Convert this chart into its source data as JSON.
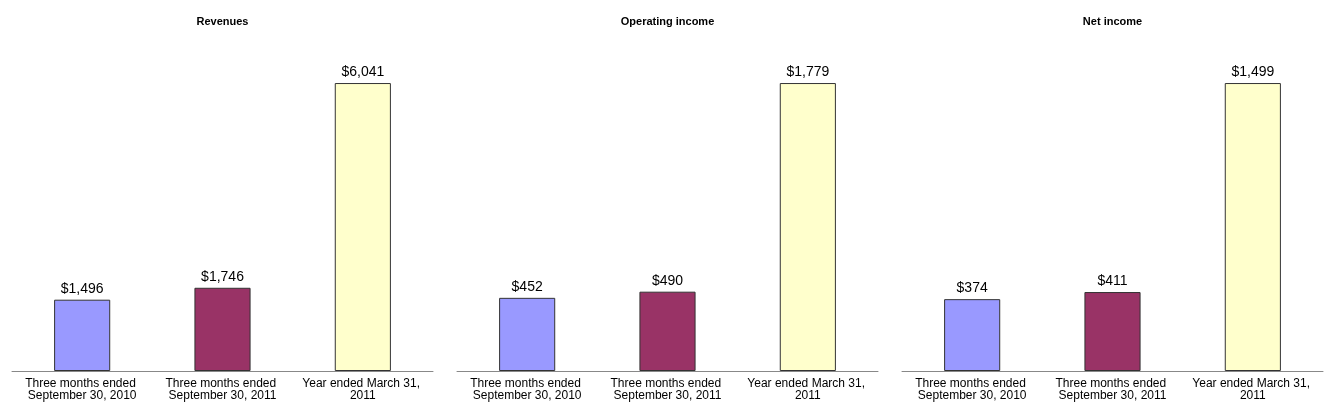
{
  "chart_data": [
    {
      "type": "bar",
      "title": "Revenues",
      "categories": [
        "Three months ended September 30, 2010",
        "Three months ended September 30, 2011",
        "Year ended March 31, 2011"
      ],
      "values": [
        1496,
        1746,
        6041
      ],
      "colors": [
        "#9999ff",
        "#993366",
        "#ffffcc"
      ],
      "value_labels": [
        "$1,496",
        "$1,746",
        "$6,041"
      ]
    },
    {
      "type": "bar",
      "title": "Operating income",
      "categories": [
        "Three months ended September 30, 2010",
        "Three months ended September 30, 2011",
        "Year ended March 31, 2011"
      ],
      "values": [
        452,
        490,
        1779
      ],
      "colors": [
        "#9999ff",
        "#993366",
        "#ffffcc"
      ],
      "value_labels": [
        "$452",
        "$490",
        "$1,779"
      ]
    },
    {
      "type": "bar",
      "title": "Net income",
      "categories": [
        "Three months ended September 30, 2010",
        "Three months ended September 30, 2011",
        "Year ended March 31, 2011"
      ],
      "values": [
        374,
        411,
        1499
      ],
      "colors": [
        "#9999ff",
        "#993366",
        "#ffffcc"
      ],
      "value_labels": [
        "$374",
        "$411",
        "$1,499"
      ]
    }
  ]
}
